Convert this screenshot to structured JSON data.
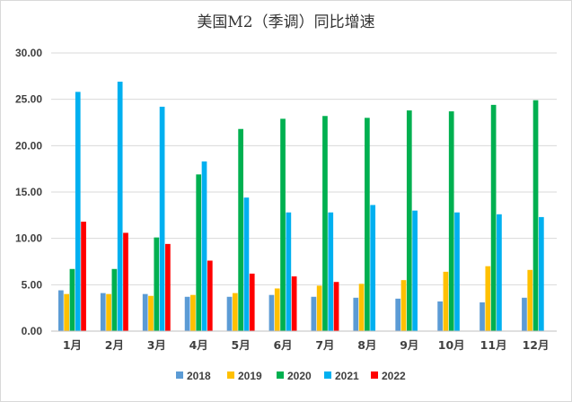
{
  "chart_data": {
    "type": "bar",
    "title": "美国M2（季调）同比增速",
    "xlabel": "",
    "ylabel": "",
    "ylim": [
      0,
      30
    ],
    "yticks": [
      "0.00",
      "5.00",
      "10.00",
      "15.00",
      "20.00",
      "25.00",
      "30.00"
    ],
    "grid": true,
    "legend_position": "bottom",
    "categories": [
      "1月",
      "2月",
      "3月",
      "4月",
      "5月",
      "6月",
      "7月",
      "8月",
      "9月",
      "10月",
      "11月",
      "12月"
    ],
    "series": [
      {
        "name": "2018",
        "color": "#5B9BD5",
        "values": [
          4.4,
          4.1,
          4.0,
          3.7,
          3.7,
          3.9,
          3.7,
          3.6,
          3.5,
          3.2,
          3.1,
          3.6
        ]
      },
      {
        "name": "2019",
        "color": "#FFC000",
        "values": [
          4.0,
          4.0,
          3.8,
          3.9,
          4.1,
          4.6,
          4.9,
          5.1,
          5.5,
          6.4,
          7.0,
          6.6
        ]
      },
      {
        "name": "2020",
        "color": "#00B050",
        "values": [
          6.7,
          6.7,
          10.1,
          16.9,
          21.8,
          22.9,
          23.2,
          23.0,
          23.8,
          23.7,
          24.4,
          24.9
        ]
      },
      {
        "name": "2021",
        "color": "#00B0F0",
        "values": [
          25.8,
          26.9,
          24.2,
          18.3,
          14.4,
          12.8,
          12.8,
          13.6,
          13.0,
          12.8,
          12.6,
          12.3
        ]
      },
      {
        "name": "2022",
        "color": "#FF0000",
        "values": [
          11.8,
          10.6,
          9.4,
          7.6,
          6.2,
          5.9,
          5.3,
          null,
          null,
          null,
          null,
          null
        ]
      }
    ]
  }
}
